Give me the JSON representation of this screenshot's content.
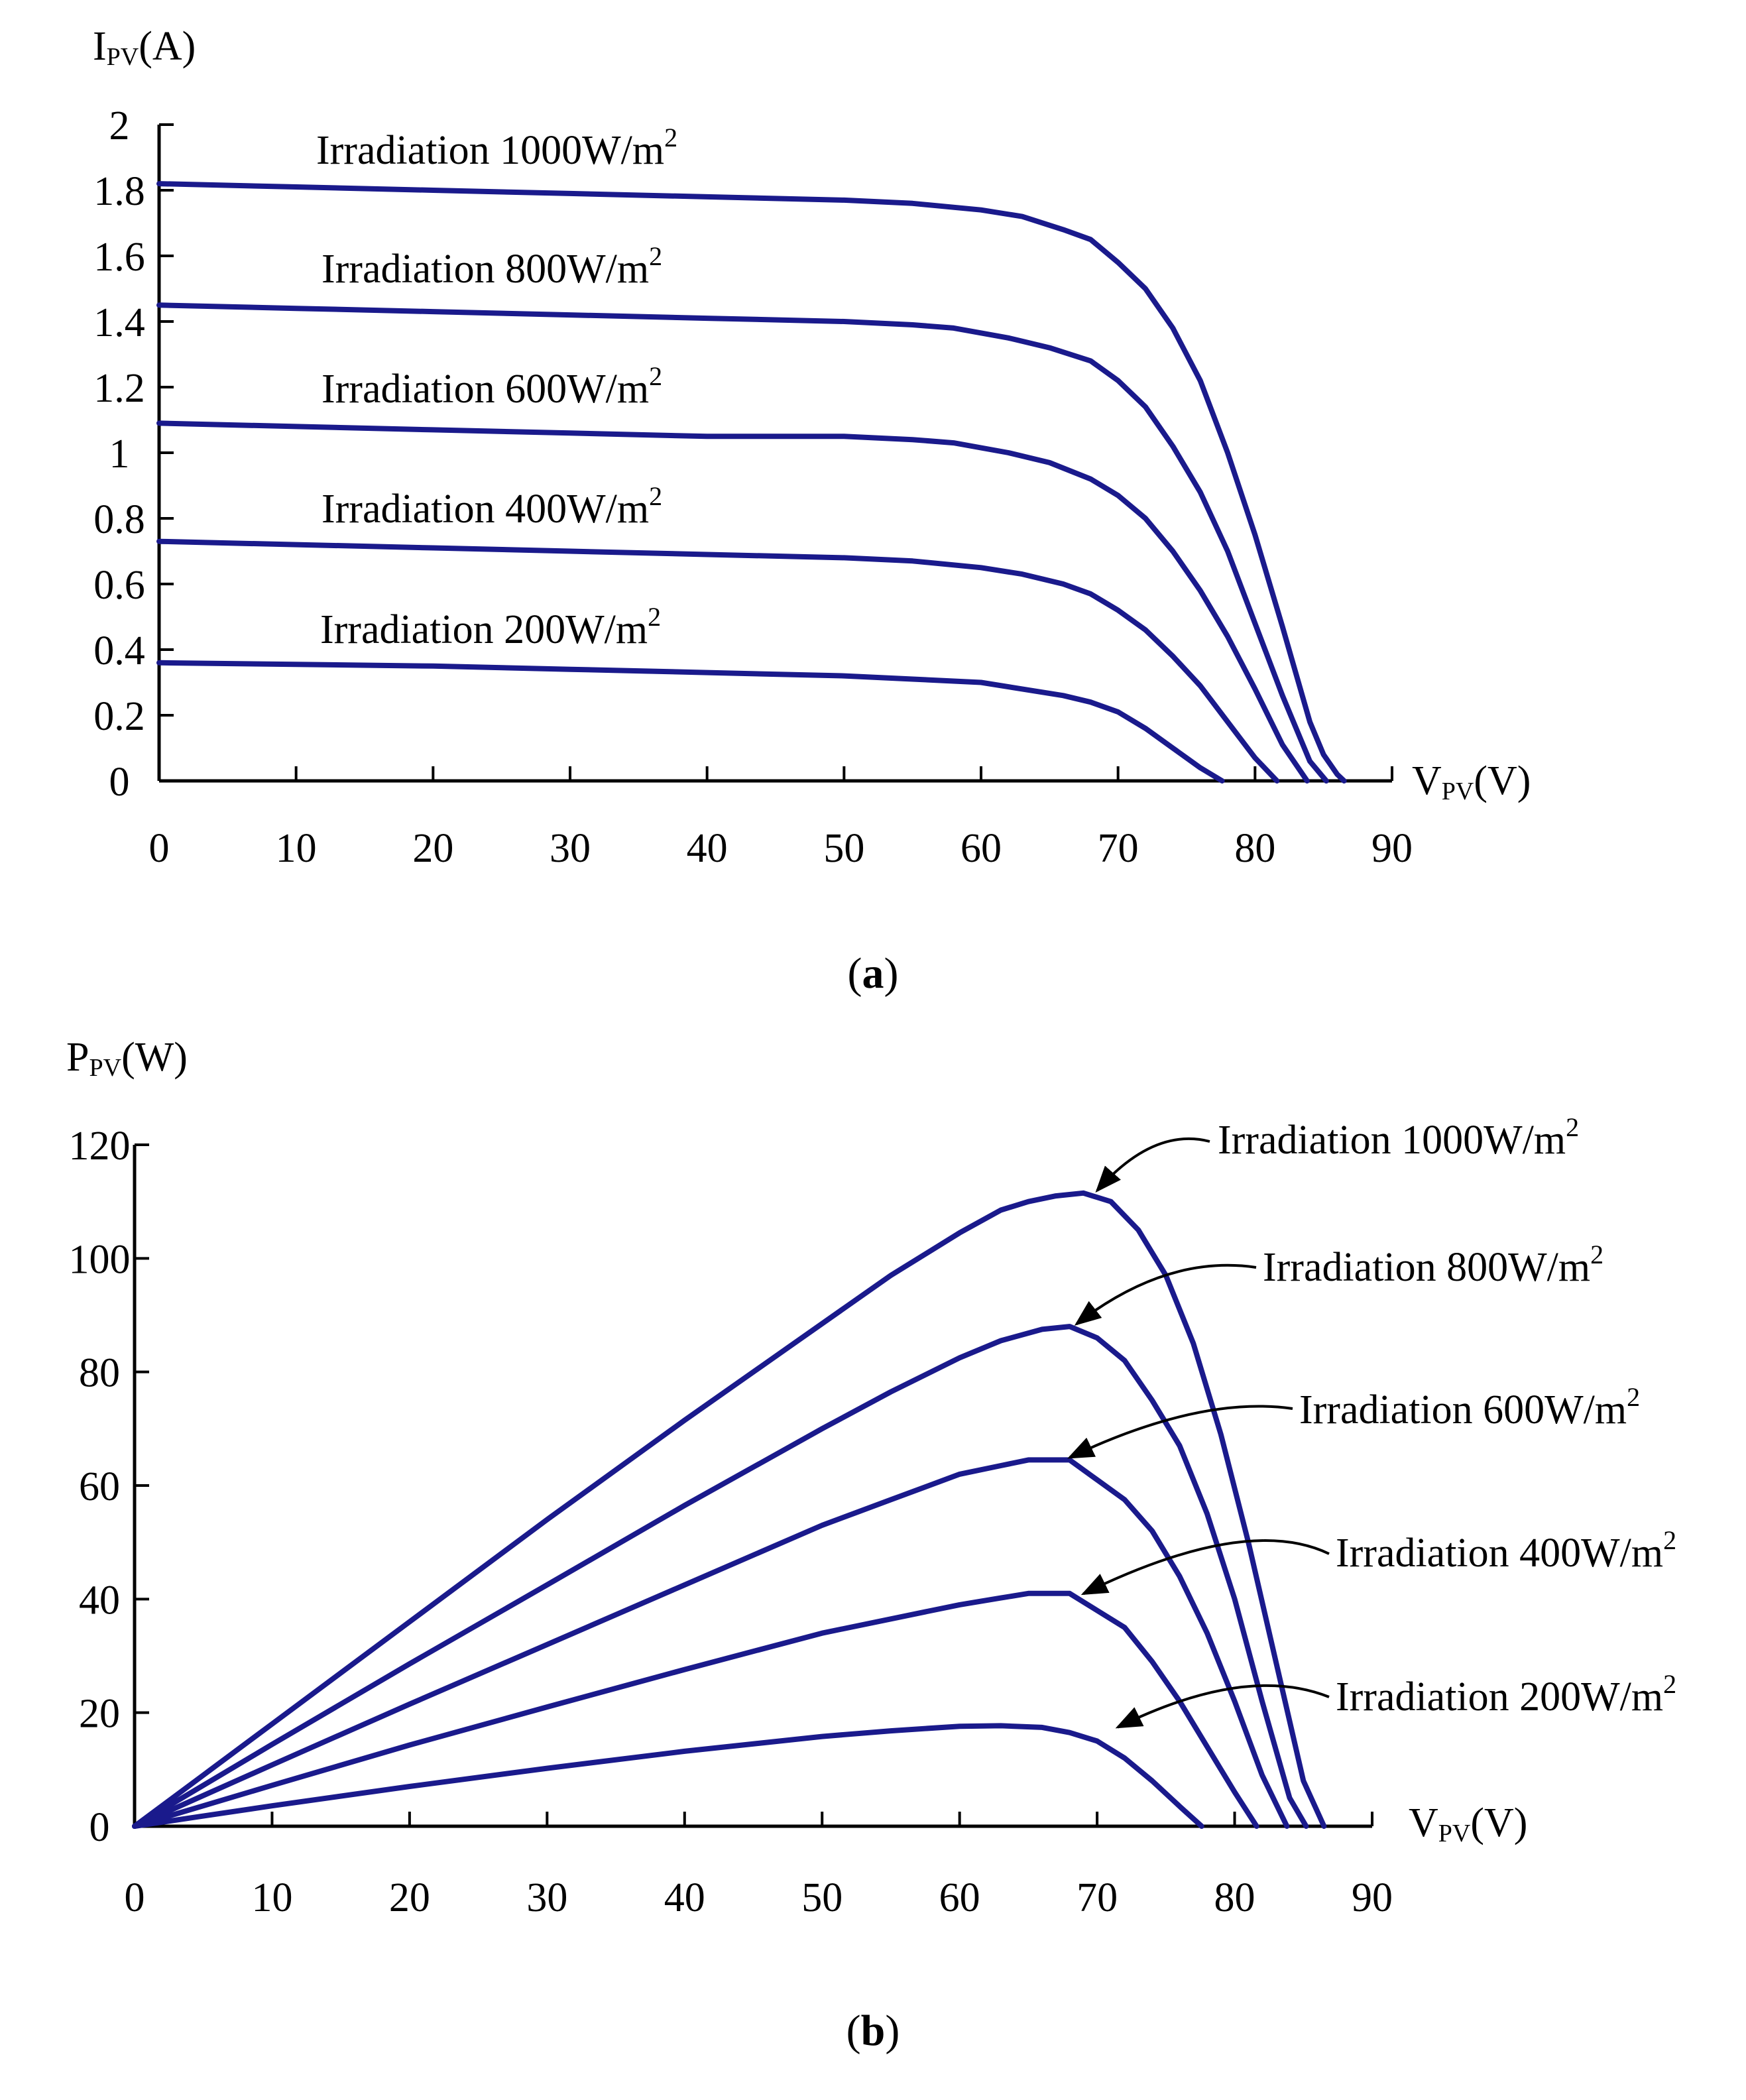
{
  "chart_data": [
    {
      "type": "line",
      "panel": "a",
      "panel_label": {
        "open": "(",
        "letter": "a",
        "close": ")"
      },
      "ylabel": {
        "main": "I",
        "sub": "PV",
        "unit": "(A)"
      },
      "xlabel": {
        "main": "V",
        "sub": "PV",
        "unit": "(V)"
      },
      "xlim": [
        0,
        90
      ],
      "ylim": [
        0,
        2
      ],
      "xticks": [
        0,
        10,
        20,
        30,
        40,
        50,
        60,
        70,
        80,
        90
      ],
      "yticks": [
        0,
        0.2,
        0.4,
        0.6,
        0.8,
        1,
        1.2,
        1.4,
        1.6,
        1.8,
        2
      ],
      "line_color": "#1a1a8c",
      "series": [
        {
          "name": "Irradiation 1000W/m2",
          "label_main": "Irradiation 1000W/m",
          "label_sup": "2",
          "x": [
            0,
            10,
            20,
            30,
            40,
            50,
            55,
            60,
            63,
            66,
            68,
            70,
            72,
            74,
            76,
            78,
            80,
            82,
            84,
            85,
            86,
            86.5
          ],
          "y": [
            1.82,
            1.81,
            1.8,
            1.79,
            1.78,
            1.77,
            1.76,
            1.74,
            1.72,
            1.68,
            1.65,
            1.58,
            1.5,
            1.38,
            1.22,
            1.0,
            0.75,
            0.47,
            0.18,
            0.08,
            0.02,
            0
          ]
        },
        {
          "name": "Irradiation 800W/m2",
          "label_main": "Irradiation 800W/m",
          "label_sup": "2",
          "x": [
            0,
            10,
            20,
            30,
            40,
            50,
            55,
            58,
            62,
            65,
            68,
            70,
            72,
            74,
            76,
            78,
            80,
            82,
            84,
            85.2
          ],
          "y": [
            1.45,
            1.44,
            1.43,
            1.42,
            1.41,
            1.4,
            1.39,
            1.38,
            1.35,
            1.32,
            1.28,
            1.22,
            1.14,
            1.02,
            0.88,
            0.7,
            0.48,
            0.26,
            0.06,
            0
          ]
        },
        {
          "name": "Irradiation 600W/m2",
          "label_main": "Irradiation 600W/m",
          "label_sup": "2",
          "x": [
            0,
            10,
            20,
            30,
            40,
            50,
            55,
            58,
            62,
            65,
            68,
            70,
            72,
            74,
            76,
            78,
            80,
            82,
            83.8
          ],
          "y": [
            1.09,
            1.08,
            1.07,
            1.06,
            1.05,
            1.05,
            1.04,
            1.03,
            1.0,
            0.97,
            0.92,
            0.87,
            0.8,
            0.7,
            0.58,
            0.44,
            0.28,
            0.11,
            0
          ]
        },
        {
          "name": "Irradiation 400W/m2",
          "label_main": "Irradiation 400W/m",
          "label_sup": "2",
          "x": [
            0,
            10,
            20,
            30,
            40,
            50,
            55,
            60,
            63,
            66,
            68,
            70,
            72,
            74,
            76,
            78,
            80,
            81.6
          ],
          "y": [
            0.73,
            0.72,
            0.71,
            0.7,
            0.69,
            0.68,
            0.67,
            0.65,
            0.63,
            0.6,
            0.57,
            0.52,
            0.46,
            0.38,
            0.29,
            0.18,
            0.07,
            0
          ]
        },
        {
          "name": "Irradiation 200W/m2",
          "label_main": "Irradiation 200W/m",
          "label_sup": "2",
          "x": [
            0,
            10,
            20,
            30,
            40,
            50,
            55,
            60,
            63,
            66,
            68,
            70,
            72,
            74,
            76,
            77.6
          ],
          "y": [
            0.36,
            0.355,
            0.35,
            0.34,
            0.33,
            0.32,
            0.31,
            0.3,
            0.28,
            0.26,
            0.24,
            0.21,
            0.16,
            0.1,
            0.04,
            0
          ]
        }
      ]
    },
    {
      "type": "line",
      "panel": "b",
      "panel_label": {
        "open": "(",
        "letter": "b",
        "close": ")"
      },
      "ylabel": {
        "main": "P",
        "sub": "PV",
        "unit": "(W)"
      },
      "xlabel": {
        "main": "V",
        "sub": "PV",
        "unit": "(V)"
      },
      "xlim": [
        0,
        90
      ],
      "ylim": [
        0,
        120
      ],
      "xticks": [
        0,
        10,
        20,
        30,
        40,
        50,
        60,
        70,
        80,
        90
      ],
      "yticks": [
        0,
        20,
        40,
        60,
        80,
        100,
        120
      ],
      "line_color": "#1a1a8c",
      "series": [
        {
          "name": "Irradiation 1000W/m2",
          "label_main": "Irradiation 1000W/m",
          "label_sup": "2",
          "arrow_to": [
            70,
            111
          ],
          "x": [
            0,
            5,
            10,
            20,
            30,
            40,
            50,
            55,
            60,
            63,
            65,
            67,
            69,
            71,
            73,
            75,
            77,
            79,
            81,
            83,
            85,
            86.5
          ],
          "y": [
            0,
            9,
            18,
            36,
            54,
            71.5,
            88.5,
            97,
            104.5,
            108.5,
            110,
            111,
            111.5,
            110,
            105,
            97,
            85,
            69,
            50,
            29,
            8,
            0
          ]
        },
        {
          "name": "Irradiation 800W/m2",
          "label_main": "Irradiation 800W/m",
          "label_sup": "2",
          "arrow_to": [
            68.5,
            87.5
          ],
          "x": [
            0,
            5,
            10,
            20,
            30,
            40,
            50,
            55,
            60,
            63,
            66,
            68,
            70,
            72,
            74,
            76,
            78,
            80,
            82,
            84,
            85.2
          ],
          "y": [
            0,
            7.2,
            14.4,
            28.6,
            42.5,
            56.5,
            70,
            76.5,
            82.5,
            85.5,
            87.5,
            88,
            86,
            82,
            75,
            67,
            55,
            40,
            22,
            5,
            0
          ]
        },
        {
          "name": "Irradiation 600W/m2",
          "label_main": "Irradiation 600W/m",
          "label_sup": "2",
          "arrow_to": [
            68,
            64
          ],
          "x": [
            0,
            5,
            10,
            20,
            30,
            40,
            50,
            55,
            60,
            63,
            65,
            68,
            70,
            72,
            74,
            76,
            78,
            80,
            82,
            83.8
          ],
          "y": [
            0,
            5.4,
            10.8,
            21.5,
            32,
            42.5,
            53,
            57.5,
            62,
            63.5,
            64.5,
            64.5,
            61,
            57.5,
            52,
            44,
            34,
            22,
            9,
            0
          ]
        },
        {
          "name": "Irradiation 400W/m2",
          "label_main": "Irradiation 400W/m",
          "label_sup": "2",
          "arrow_to": [
            69,
            40
          ],
          "x": [
            0,
            5,
            10,
            20,
            30,
            40,
            50,
            55,
            60,
            63,
            65,
            68,
            70,
            72,
            74,
            76,
            78,
            80,
            81.6
          ],
          "y": [
            0,
            3.6,
            7.2,
            14.3,
            21,
            27.6,
            34,
            36.5,
            39,
            40.2,
            41,
            41,
            38,
            35,
            29,
            22,
            14,
            6,
            0
          ]
        },
        {
          "name": "Irradiation 200W/m2",
          "label_main": "Irradiation 200W/m",
          "label_sup": "2",
          "arrow_to": [
            71.5,
            16.5
          ],
          "x": [
            0,
            5,
            10,
            20,
            30,
            40,
            50,
            55,
            60,
            63,
            66,
            68,
            70,
            72,
            74,
            76,
            77.6
          ],
          "y": [
            0,
            1.8,
            3.6,
            7,
            10.2,
            13.2,
            15.8,
            16.8,
            17.6,
            17.7,
            17.4,
            16.5,
            15,
            12,
            8,
            3.5,
            0
          ]
        }
      ]
    }
  ]
}
